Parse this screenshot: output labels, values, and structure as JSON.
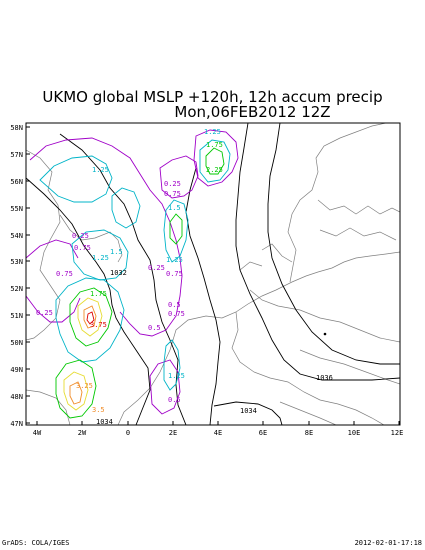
{
  "title_line1": "UKMO global MSLP +120h, 12h accum precip",
  "title_line2": "Mon,06FEB2012 12Z",
  "lat_labels": [
    "58N",
    "57N",
    "56N",
    "55N",
    "54N",
    "53N",
    "52N",
    "51N",
    "50N",
    "49N",
    "48N",
    "47N"
  ],
  "lon_labels": [
    "4W",
    "2W",
    "0",
    "2E",
    "4E",
    "6E",
    "8E",
    "10E",
    "12E"
  ],
  "pressure_labels": [
    "1032",
    "1036",
    "1034",
    "1034"
  ],
  "precip_labels": [
    "1.25",
    "1.75",
    "2.25",
    "1.25",
    "0.25",
    "0.75",
    "1.5",
    "0.25",
    "0.75",
    "1.25",
    "0.75",
    "1.5",
    "1.25",
    "0.25",
    "0.75",
    "0.5",
    "0.75",
    "0.25",
    "3.75",
    "0.5",
    "1.75",
    "3.25",
    "3.5",
    "0.5",
    "1.25"
  ],
  "footer_left": "GrADS: COLA/IGES",
  "footer_right": "2012-02-01-17:18",
  "colors": {
    "precip_low": "#a000c8",
    "precip_mid": "#00b4c8",
    "precip_green": "#00c800",
    "precip_yellow": "#e6dc32",
    "precip_orange": "#f08c28",
    "precip_red": "#dc0000",
    "coast": "#808080",
    "isobar": "#000000"
  }
}
